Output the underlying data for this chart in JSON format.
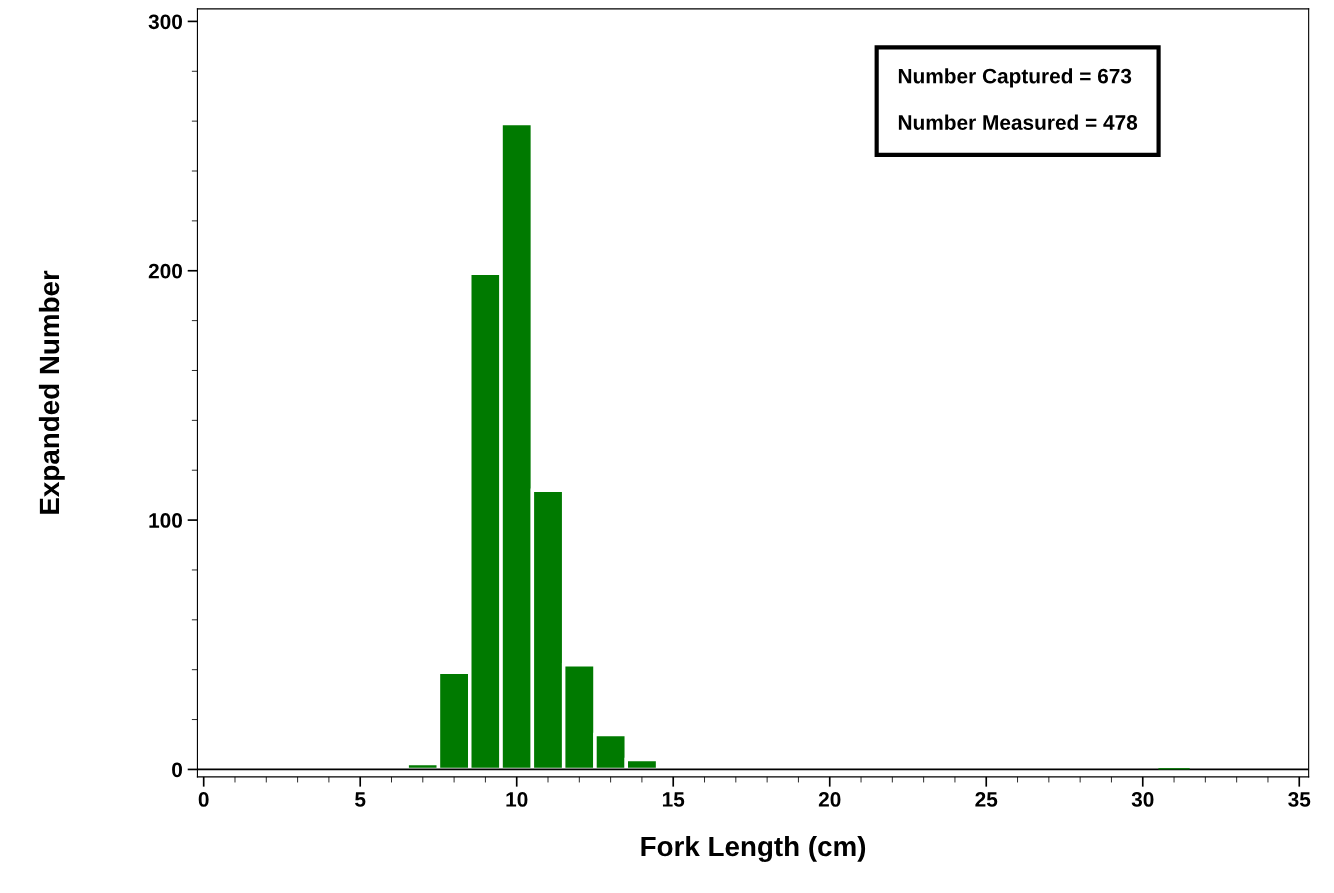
{
  "chart_data": {
    "type": "histogram",
    "xlabel": "Fork Length (cm)",
    "ylabel": "Expanded Number",
    "bins": [
      6.5,
      7.5,
      8.5,
      9.5,
      10.5,
      11.5,
      12.5,
      13.5,
      14.5,
      15.5,
      16.5,
      17.5,
      18.5,
      19.5,
      20.5,
      21.5,
      22.5,
      23.5,
      24.5,
      25.5,
      26.5,
      27.5,
      28.5,
      29.5,
      30.5,
      31.5
    ],
    "values": [
      2.4,
      39,
      199,
      259,
      112,
      42,
      14,
      4,
      0,
      0,
      0,
      0,
      0,
      0,
      0,
      0,
      0,
      0,
      0,
      0,
      0,
      0,
      0,
      0,
      0.5
    ],
    "color": "#007a00",
    "xlim": [
      -0.2,
      35.3
    ],
    "xticks": [
      0,
      5,
      10,
      15,
      20,
      25,
      30,
      35
    ],
    "ylim": [
      -3,
      305
    ],
    "yticks": [
      0,
      100,
      200,
      300
    ],
    "ref_lines": [
      {
        "axis": "y",
        "value": 0,
        "color": "#000000"
      }
    ],
    "annotations": [
      "Number Captured = 673",
      "Number Measured = 478"
    ],
    "grid": false,
    "legend": false
  }
}
